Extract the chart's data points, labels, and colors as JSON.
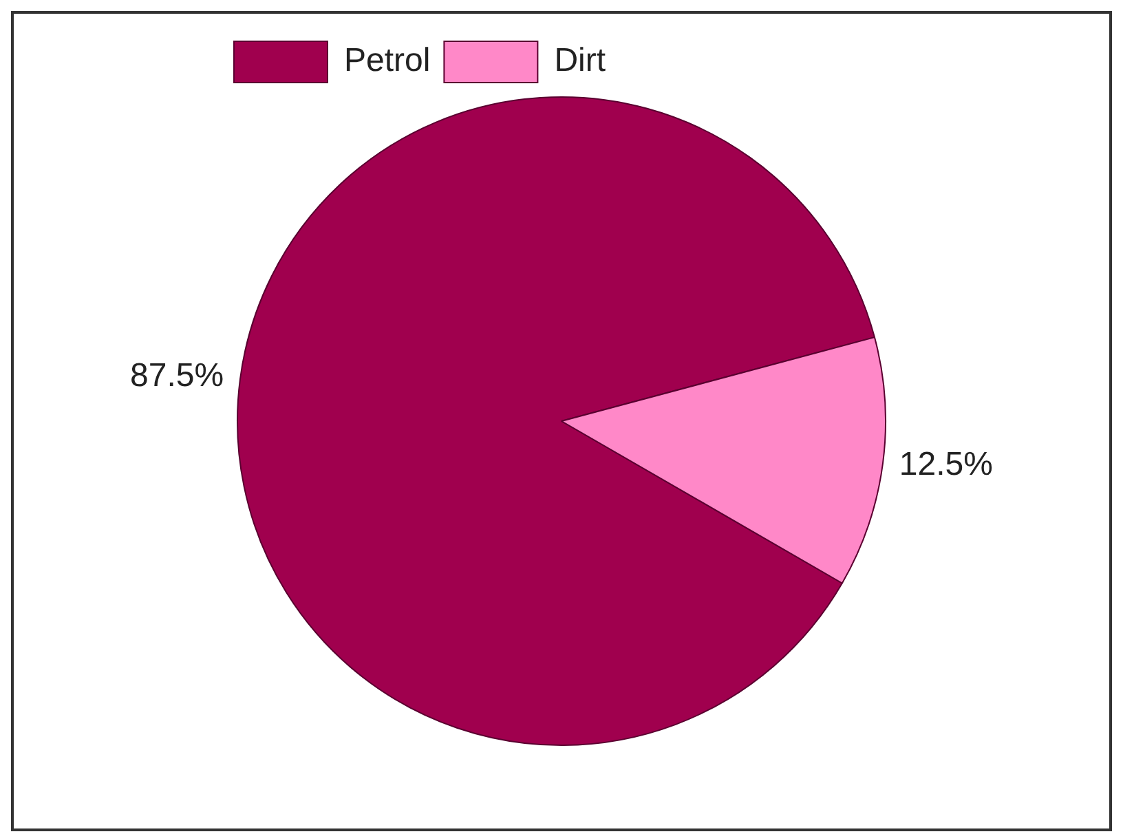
{
  "chart_data": {
    "type": "pie",
    "categories": [
      "Petrol",
      "Dirt"
    ],
    "values": [
      87.5,
      12.5
    ],
    "colors": [
      "#a0004e",
      "#ff88c8"
    ],
    "value_labels": [
      "87.5%",
      "12.5%"
    ],
    "legend": "top left"
  }
}
